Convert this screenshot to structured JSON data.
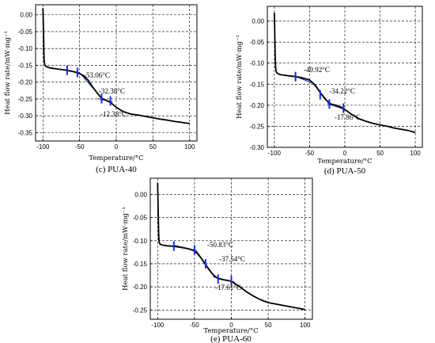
{
  "chart_data": [
    {
      "type": "line",
      "caption": "(c) PUA-40",
      "xlabel": "Temperature/°C",
      "ylabel": "Heat flow rate/mW·mg⁻¹",
      "xlim": [
        -110,
        110
      ],
      "ylim": [
        -0.375,
        0.03
      ],
      "xticks": [
        -100,
        -50,
        0,
        50,
        100
      ],
      "yticks": [
        0.0,
        -0.05,
        -0.1,
        -0.15,
        -0.2,
        -0.25,
        -0.3,
        -0.35
      ],
      "xtick_labels": [
        "-100",
        "-50",
        "0",
        "50",
        "100"
      ],
      "ytick_labels": [
        "0.00",
        "-0.05",
        "-0.10",
        "-0.15",
        "-0.20",
        "-0.25",
        "-0.30",
        "-0.35"
      ],
      "grid": true,
      "series": [
        {
          "color": "#000000",
          "x": [
            -100,
            -99.5,
            -99,
            -98.7,
            -98.3,
            -97.5,
            -96,
            -93,
            -90,
            -80,
            -70,
            -60,
            -53,
            -45,
            -38,
            -32,
            -25,
            -20,
            -15,
            -12,
            -8,
            0,
            10,
            20,
            30,
            40,
            50,
            60,
            70,
            80,
            90,
            100
          ],
          "y": [
            0.02,
            -0.02,
            -0.07,
            -0.11,
            -0.135,
            -0.148,
            -0.153,
            -0.156,
            -0.158,
            -0.161,
            -0.164,
            -0.168,
            -0.172,
            -0.18,
            -0.195,
            -0.215,
            -0.235,
            -0.248,
            -0.253,
            -0.256,
            -0.26,
            -0.275,
            -0.288,
            -0.295,
            -0.298,
            -0.302,
            -0.306,
            -0.31,
            -0.313,
            -0.317,
            -0.32,
            -0.323
          ]
        }
      ],
      "markers": [
        {
          "x": -67,
          "y": -0.165
        },
        {
          "x": -53,
          "y": -0.171
        },
        {
          "x": -20,
          "y": -0.249
        },
        {
          "x": -8,
          "y": -0.256
        }
      ],
      "tangent_lines": [
        {
          "x": [
            -70,
            -50
          ],
          "y": [
            -0.163,
            -0.172
          ]
        },
        {
          "x": [
            -50,
            -25
          ],
          "y": [
            -0.172,
            -0.235
          ]
        },
        {
          "x": [
            -25,
            -5
          ],
          "y": [
            -0.249,
            -0.259
          ]
        }
      ],
      "annotations": [
        "-53.06°C",
        "-32.38°C",
        "-12.38°C"
      ]
    },
    {
      "type": "line",
      "caption": "(d) PUA-50",
      "xlabel": "Temperature/°C",
      "ylabel": "Heat flow rate/mW·mg⁻¹",
      "xlim": [
        -110,
        110
      ],
      "ylim": [
        -0.3,
        0.035
      ],
      "xticks": [
        -100,
        -50,
        0,
        50,
        100
      ],
      "yticks": [
        0.0,
        -0.05,
        -0.1,
        -0.15,
        -0.2,
        -0.25,
        -0.3
      ],
      "xtick_labels": [
        "-100",
        "-50",
        "0",
        "50",
        "100"
      ],
      "ytick_labels": [
        "0.00",
        "-0.05",
        "-0.10",
        "-0.15",
        "-0.20",
        "-0.25",
        "-0.30"
      ],
      "grid": true,
      "series": [
        {
          "color": "#000000",
          "x": [
            -100,
            -99.5,
            -99,
            -98.5,
            -98,
            -97,
            -95,
            -92,
            -88,
            -80,
            -70,
            -60,
            -50,
            -42,
            -35,
            -28,
            -22,
            -18,
            -12,
            -5,
            0,
            10,
            20,
            30,
            40,
            50,
            60,
            70,
            80,
            90,
            100
          ],
          "y": [
            0.02,
            -0.03,
            -0.07,
            -0.1,
            -0.115,
            -0.122,
            -0.125,
            -0.127,
            -0.128,
            -0.13,
            -0.132,
            -0.135,
            -0.14,
            -0.152,
            -0.17,
            -0.185,
            -0.195,
            -0.198,
            -0.2,
            -0.205,
            -0.21,
            -0.222,
            -0.232,
            -0.238,
            -0.243,
            -0.247,
            -0.25,
            -0.254,
            -0.257,
            -0.26,
            -0.265
          ]
        }
      ],
      "markers": [
        {
          "x": -70,
          "y": -0.132
        },
        {
          "x": -35,
          "y": -0.175
        },
        {
          "x": -22,
          "y": -0.197
        },
        {
          "x": -2,
          "y": -0.207
        }
      ],
      "tangent_lines": [
        {
          "x": [
            -72,
            -45
          ],
          "y": [
            -0.13,
            -0.148
          ]
        },
        {
          "x": [
            -45,
            -20
          ],
          "y": [
            -0.148,
            -0.2
          ]
        },
        {
          "x": [
            -25,
            0
          ],
          "y": [
            -0.196,
            -0.21
          ]
        }
      ],
      "annotations": [
        "-49.92°C",
        "-34.22°C",
        "-17.86°C"
      ]
    },
    {
      "type": "line",
      "caption": "(e) PUA-60",
      "xlabel": "Temperature/°C",
      "ylabel": "Heat flow rate/mW·mg⁻¹",
      "xlim": [
        -110,
        110
      ],
      "ylim": [
        -0.27,
        0.035
      ],
      "xticks": [
        -100,
        -50,
        0,
        50,
        100
      ],
      "yticks": [
        0.0,
        -0.05,
        -0.1,
        -0.15,
        -0.2,
        -0.25
      ],
      "xtick_labels": [
        "-100",
        "-50",
        "0",
        "50",
        "100"
      ],
      "ytick_labels": [
        "0.00",
        "-0.05",
        "-0.10",
        "-0.15",
        "-0.20",
        "-0.25"
      ],
      "grid": true,
      "series": [
        {
          "color": "#000000",
          "x": [
            -100,
            -99.5,
            -99,
            -98.5,
            -98,
            -97,
            -95,
            -92,
            -88,
            -80,
            -70,
            -60,
            -50,
            -45,
            -40,
            -35,
            -30,
            -25,
            -20,
            -15,
            -10,
            -5,
            0,
            10,
            20,
            30,
            40,
            50,
            60,
            70,
            80,
            90,
            100
          ],
          "y": [
            0.025,
            -0.02,
            -0.06,
            -0.09,
            -0.102,
            -0.107,
            -0.109,
            -0.11,
            -0.111,
            -0.112,
            -0.114,
            -0.117,
            -0.122,
            -0.13,
            -0.14,
            -0.152,
            -0.163,
            -0.173,
            -0.18,
            -0.183,
            -0.185,
            -0.186,
            -0.188,
            -0.198,
            -0.21,
            -0.22,
            -0.228,
            -0.234,
            -0.237,
            -0.24,
            -0.243,
            -0.246,
            -0.249
          ]
        }
      ],
      "markers": [
        {
          "x": -78,
          "y": -0.112
        },
        {
          "x": -50,
          "y": -0.12
        },
        {
          "x": -35,
          "y": -0.15
        },
        {
          "x": -18,
          "y": -0.183
        },
        {
          "x": 0,
          "y": -0.186
        }
      ],
      "tangent_lines": [
        {
          "x": [
            -78,
            -48
          ],
          "y": [
            -0.11,
            -0.121
          ]
        },
        {
          "x": [
            -48,
            -22
          ],
          "y": [
            -0.121,
            -0.18
          ]
        },
        {
          "x": [
            -25,
            5
          ],
          "y": [
            -0.178,
            -0.19
          ]
        }
      ],
      "annotations": [
        "-50.83°C",
        "-37.54°C",
        "-17.61°C"
      ]
    }
  ]
}
